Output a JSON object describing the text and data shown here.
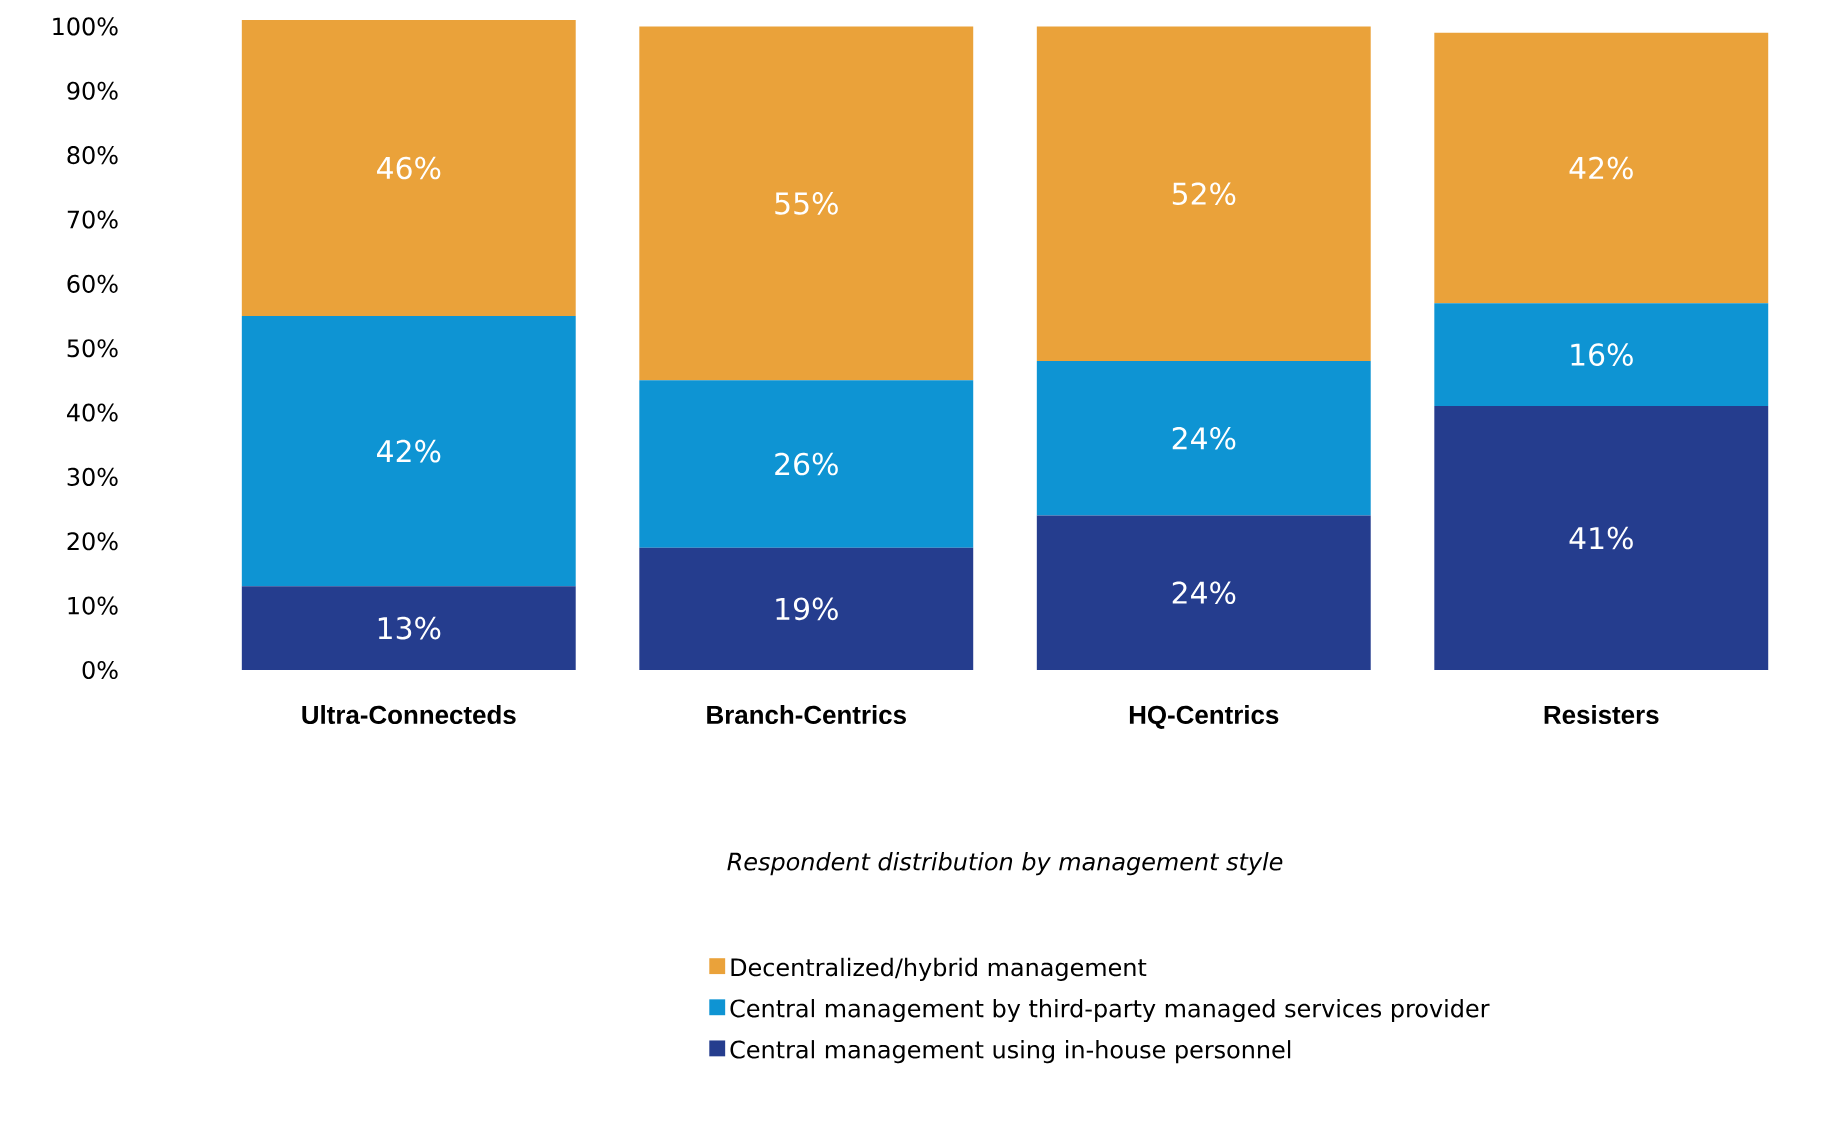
{
  "chart_data": {
    "type": "bar",
    "stacked": true,
    "annotations": [
      "Respondent distribution by management style"
    ],
    "categories": [
      "Ultra-Connecteds",
      "Branch-Centrics",
      "HQ-Centrics",
      "Resisters"
    ],
    "series": [
      {
        "name": "Central management using in-house personnel",
        "color": "#253d8e",
        "values": [
          13,
          19,
          24,
          41
        ],
        "value_labels": [
          "13%",
          "19%",
          "24%",
          "41%"
        ]
      },
      {
        "name": "Central management by third-party managed services provider",
        "color": "#0e94d3",
        "values": [
          42,
          26,
          24,
          16
        ],
        "value_labels": [
          "42%",
          "26%",
          "24%",
          "16%"
        ]
      },
      {
        "name": "Decentralized/hybrid management",
        "color": "#eaa23a",
        "values": [
          46,
          55,
          52,
          42
        ],
        "value_labels": [
          "46%",
          "55%",
          "52%",
          "42%"
        ]
      }
    ],
    "ylim": [
      0,
      101
    ],
    "yticks": [
      {
        "value": 0,
        "label": "0%"
      },
      {
        "value": 10,
        "label": "10%"
      },
      {
        "value": 20,
        "label": "20%"
      },
      {
        "value": 30,
        "label": "30%"
      },
      {
        "value": 40,
        "label": "40%"
      },
      {
        "value": 50,
        "label": "50%"
      },
      {
        "value": 60,
        "label": "60%"
      },
      {
        "value": 70,
        "label": "70%"
      },
      {
        "value": 80,
        "label": "80%"
      },
      {
        "value": 90,
        "label": "90%"
      },
      {
        "value": 100,
        "label": "100%"
      }
    ],
    "grid": false,
    "legend": "bottom"
  }
}
